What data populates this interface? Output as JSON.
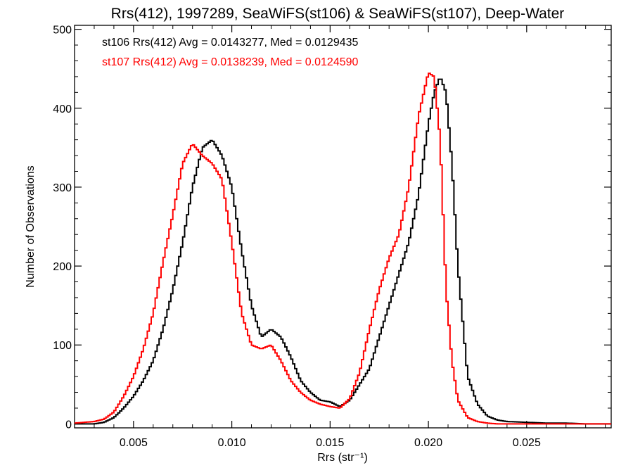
{
  "chart_data": {
    "type": "line",
    "title": "Rrs(412), 1997289, SeaWiFS(st106) & SeaWiFS(st107), Deep-Water",
    "xlabel": "Rrs (str⁻¹)",
    "ylabel": "Number of Observations",
    "xlim": [
      0.002,
      0.0293
    ],
    "ylim": [
      -5,
      505
    ],
    "xticks": [
      0.005,
      0.01,
      0.015,
      0.02,
      0.025
    ],
    "xtick_labels": [
      "0.005",
      "0.010",
      "0.015",
      "0.020",
      "0.025"
    ],
    "yticks": [
      0,
      100,
      200,
      300,
      400,
      500
    ],
    "ytick_labels": [
      "0",
      "100",
      "200",
      "300",
      "400",
      "500"
    ],
    "grid": false,
    "annotations": [
      "st106 Rrs(412) Avg = 0.0143277, Med = 0.0129435",
      "st107 Rrs(412) Avg = 0.0138239, Med = 0.0124590"
    ],
    "series": [
      {
        "color": "#000000",
        "x": [
          0.002,
          0.003,
          0.0035,
          0.004,
          0.0045,
          0.005,
          0.0055,
          0.006,
          0.0065,
          0.007,
          0.0075,
          0.008,
          0.0085,
          0.009,
          0.0095,
          0.01,
          0.0105,
          0.011,
          0.0115,
          0.012,
          0.0125,
          0.013,
          0.0135,
          0.014,
          0.0145,
          0.015,
          0.0155,
          0.016,
          0.0165,
          0.017,
          0.0175,
          0.018,
          0.0185,
          0.019,
          0.0195,
          0.02,
          0.0203,
          0.0206,
          0.0209,
          0.0212,
          0.0215,
          0.022,
          0.0225,
          0.023,
          0.0235,
          0.024,
          0.025,
          0.026,
          0.027,
          0.028,
          0.0293
        ],
        "y": [
          0,
          0,
          2,
          8,
          20,
          35,
          55,
          80,
          120,
          170,
          230,
          300,
          350,
          360,
          340,
          300,
          220,
          150,
          110,
          120,
          110,
          85,
          55,
          40,
          30,
          28,
          22,
          30,
          50,
          70,
          110,
          150,
          190,
          230,
          290,
          380,
          420,
          440,
          420,
          330,
          200,
          60,
          25,
          10,
          5,
          3,
          2,
          1,
          1,
          0,
          0
        ]
      },
      {
        "color": "#ff0000",
        "x": [
          0.002,
          0.003,
          0.0035,
          0.004,
          0.0045,
          0.005,
          0.0055,
          0.006,
          0.0065,
          0.007,
          0.0075,
          0.008,
          0.0085,
          0.009,
          0.0095,
          0.01,
          0.0105,
          0.011,
          0.0115,
          0.012,
          0.0125,
          0.013,
          0.0135,
          0.014,
          0.0145,
          0.015,
          0.0155,
          0.016,
          0.0165,
          0.017,
          0.0175,
          0.018,
          0.0185,
          0.019,
          0.0195,
          0.02,
          0.0203,
          0.0206,
          0.0209,
          0.0212,
          0.0215,
          0.022,
          0.0225,
          0.023,
          0.0235,
          0.024,
          0.025,
          0.026,
          0.027,
          0.028,
          0.0293
        ],
        "y": [
          1,
          3,
          6,
          15,
          35,
          60,
          95,
          140,
          205,
          265,
          330,
          355,
          340,
          330,
          310,
          230,
          140,
          100,
          95,
          100,
          80,
          55,
          40,
          30,
          25,
          22,
          20,
          32,
          65,
          120,
          170,
          210,
          240,
          300,
          390,
          445,
          440,
          360,
          170,
          80,
          30,
          8,
          3,
          1,
          0,
          0,
          0,
          0,
          0,
          0,
          0
        ]
      }
    ]
  }
}
